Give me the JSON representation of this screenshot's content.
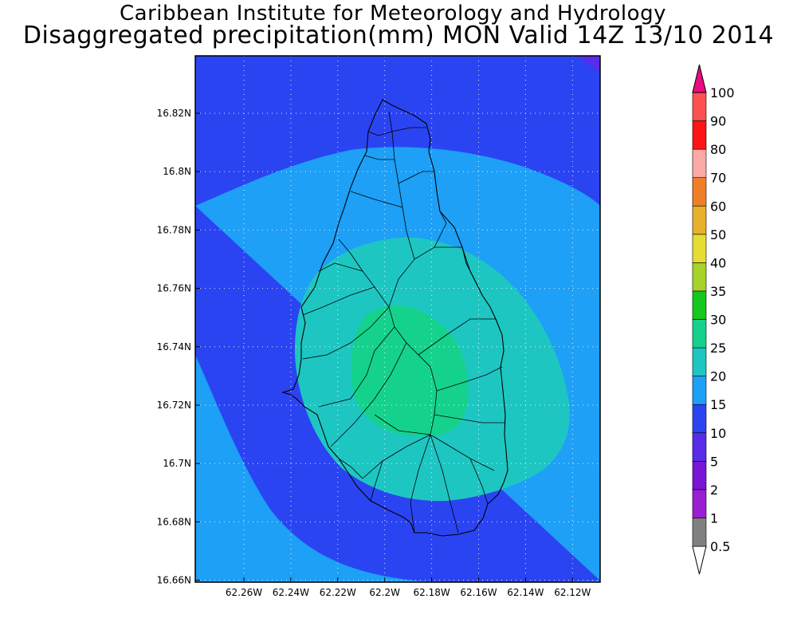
{
  "title_line1": "Caribbean Institute for Meteorology and Hydrology",
  "title_line2": "Disaggregated precipitation(mm) MON Valid 14Z 13/10 2014",
  "lat_ticks": [
    "16.82N",
    "16.8N",
    "16.78N",
    "16.76N",
    "16.74N",
    "16.72N",
    "16.7N",
    "16.68N",
    "16.66N"
  ],
  "lon_ticks": [
    "62.26W",
    "62.24W",
    "62.22W",
    "62.2W",
    "62.18W",
    "62.16W",
    "62.14W",
    "62.12W"
  ],
  "colorbar": {
    "levels": [
      "0.5",
      "1",
      "2",
      "5",
      "10",
      "15",
      "20",
      "25",
      "30",
      "35",
      "40",
      "50",
      "60",
      "70",
      "80",
      "90",
      "100"
    ],
    "colors": [
      "#808080",
      "#9a1ed2",
      "#7a14d6",
      "#5a2be8",
      "#2b44f2",
      "#1da0f6",
      "#1ec6c2",
      "#14d28c",
      "#14c81e",
      "#a6d22a",
      "#e6dc32",
      "#e6b02a",
      "#f07e26",
      "#fcaaa6",
      "#ff1414",
      "#ff5050",
      "#ea0a82"
    ]
  },
  "field_colors": {
    "outer": "#2b44f2",
    "ring15": "#1da0f6",
    "ring20": "#1ec6c2",
    "core25": "#14d28c",
    "corner10": "#5a2be8"
  }
}
